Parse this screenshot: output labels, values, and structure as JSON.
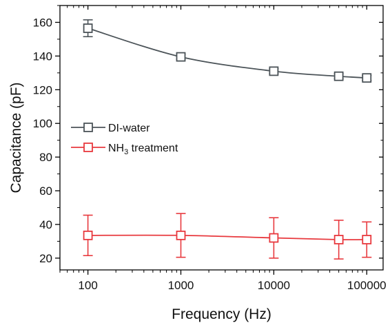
{
  "chart_data": {
    "type": "line",
    "xlabel": "Frequency (Hz)",
    "ylabel": "Capacitance (pF)",
    "x_scale": "log",
    "xlim": [
      50,
      150000
    ],
    "ylim": [
      13,
      170
    ],
    "x_ticks": [
      100,
      1000,
      10000,
      100000
    ],
    "x_tick_labels": [
      "100",
      "1000",
      "10000",
      "100000"
    ],
    "y_ticks": [
      20,
      40,
      60,
      80,
      100,
      120,
      140,
      160
    ],
    "y_tick_labels": [
      "20",
      "40",
      "60",
      "80",
      "100",
      "120",
      "140",
      "160"
    ],
    "grid": false,
    "legend_position": "center-left",
    "x": [
      100,
      1000,
      10000,
      50000,
      100000
    ],
    "series": [
      {
        "name": "DI-water",
        "name_parts": [
          "DI-water"
        ],
        "color": "#4b5358",
        "marker": "open-square",
        "values": [
          156.5,
          139.5,
          131.0,
          128.0,
          127.0
        ],
        "error": [
          5.0,
          1.5,
          1.5,
          1.5,
          1.5
        ]
      },
      {
        "name": "NH3 treatment",
        "name_parts": [
          "NH",
          "3",
          " treatment"
        ],
        "color": "#e8383d",
        "marker": "open-square",
        "values": [
          33.5,
          33.5,
          32.0,
          31.0,
          31.0
        ],
        "error": [
          12.0,
          13.0,
          12.0,
          11.5,
          10.5
        ]
      }
    ]
  }
}
